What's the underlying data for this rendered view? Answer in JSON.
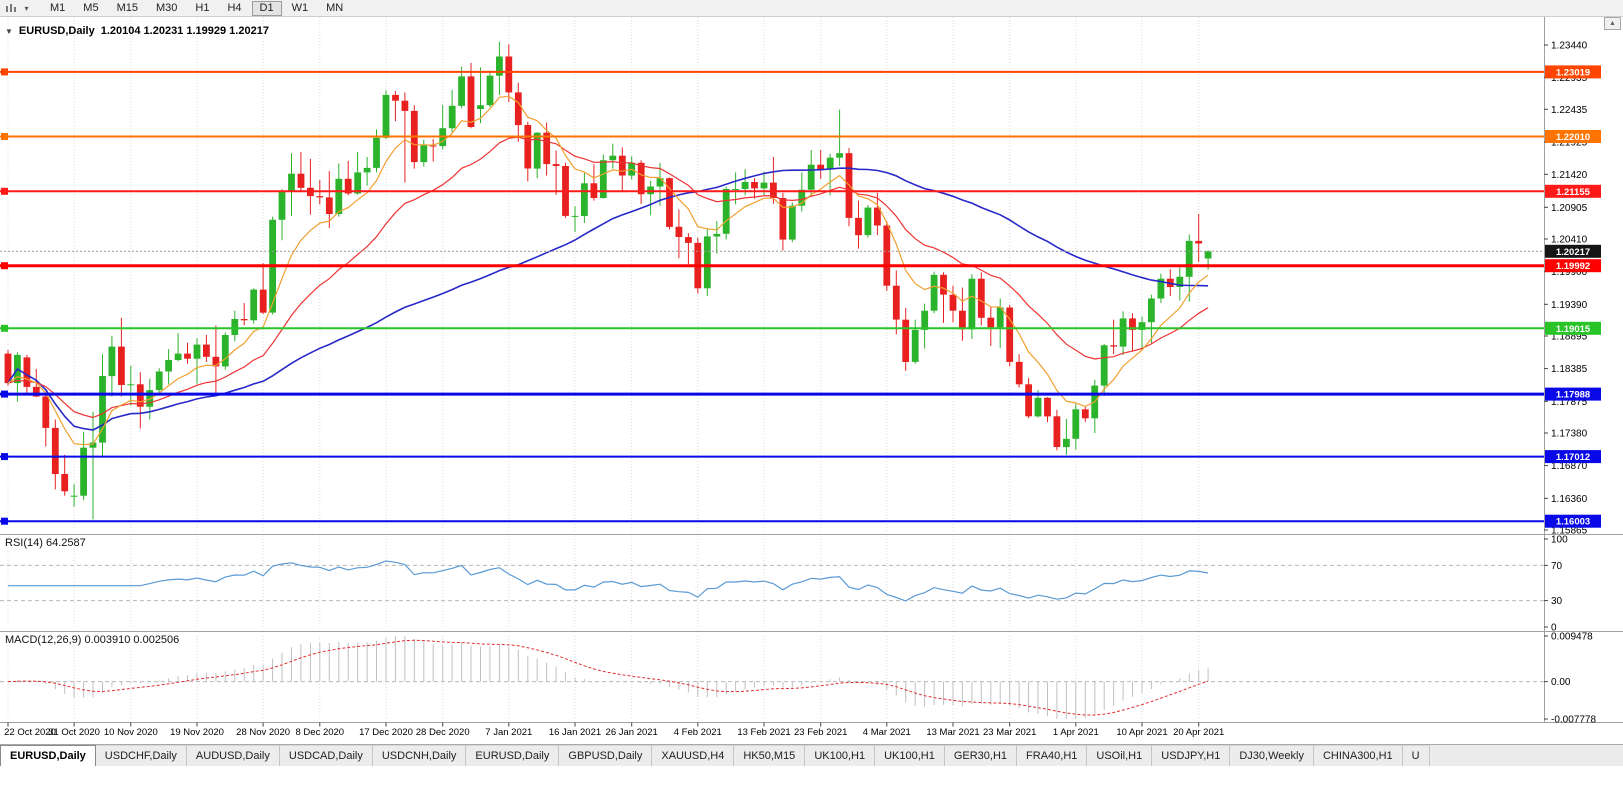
{
  "toolbar": {
    "timeframes": [
      "M1",
      "M5",
      "M15",
      "M30",
      "H1",
      "H4",
      "D1",
      "W1",
      "MN"
    ],
    "active_timeframe": "D1"
  },
  "chart_header": {
    "symbol": "EURUSD,Daily",
    "ohlc": "1.20104 1.20231 1.19929 1.20217"
  },
  "indicators": {
    "rsi_label": "RSI(14) 64.2587",
    "macd_label": "MACD(12,26,9) 0.003910 0.002506"
  },
  "colors": {
    "bull": "#2bb32b",
    "bear": "#e82020",
    "ma_fast": "#f0a030",
    "ma_mid": "#ee3333",
    "ma_slow": "#2828c8",
    "rsi": "#5b9bd5",
    "macd_hist": "#c0c0c0",
    "macd_signal": "#e03030",
    "grid": "#dcdcdc",
    "axis_text": "#000000"
  },
  "chart_data": {
    "type": "candlestick",
    "symbol": "EURUSD",
    "timeframe": "Daily",
    "ohlc_display": {
      "open": "1.20104",
      "high": "1.20231",
      "low": "1.19929",
      "close": "1.20217"
    },
    "price_scale": {
      "top": 1.23877,
      "bottom": 1.15818
    },
    "price_ticks": [
      "1.23440",
      "1.22935",
      "1.22435",
      "1.21925",
      "1.21420",
      "1.20905",
      "1.20410",
      "1.19900",
      "1.19390",
      "1.18895",
      "1.18385",
      "1.17875",
      "1.17380",
      "1.16870",
      "1.16360",
      "1.15865"
    ],
    "date_labels": [
      "22 Oct 2020",
      "31 Oct 2020",
      "10 Nov 2020",
      "19 Nov 2020",
      "28 Nov 2020",
      "8 Dec 2020",
      "17 Dec 2020",
      "28 Dec 2020",
      "7 Jan 2021",
      "16 Jan 2021",
      "26 Jan 2021",
      "4 Feb 2021",
      "13 Feb 2021",
      "23 Feb 2021",
      "4 Mar 2021",
      "13 Mar 2021",
      "23 Mar 2021",
      "1 Apr 2021",
      "10 Apr 2021",
      "20 Apr 2021"
    ],
    "x_tick_indices": [
      0,
      7,
      13,
      20,
      27,
      33,
      40,
      46,
      53,
      60,
      66,
      73,
      80,
      86,
      93,
      100,
      106,
      113,
      120,
      126
    ],
    "candles": [
      [
        1.1862,
        1.1868,
        1.1812,
        1.1816
      ],
      [
        1.1816,
        1.1864,
        1.1787,
        1.186
      ],
      [
        1.1856,
        1.186,
        1.18,
        1.181
      ],
      [
        1.181,
        1.1838,
        1.1794,
        1.1795
      ],
      [
        1.1795,
        1.18,
        1.1717,
        1.1746
      ],
      [
        1.1746,
        1.1759,
        1.165,
        1.1674
      ],
      [
        1.1674,
        1.1704,
        1.164,
        1.1647
      ],
      [
        1.164,
        1.1658,
        1.1623,
        1.164
      ],
      [
        1.164,
        1.174,
        1.1633,
        1.1715
      ],
      [
        1.1715,
        1.1771,
        1.1603,
        1.1723
      ],
      [
        1.1723,
        1.1861,
        1.1702,
        1.1827
      ],
      [
        1.1827,
        1.189,
        1.1795,
        1.1873
      ],
      [
        1.1873,
        1.1918,
        1.1795,
        1.1813
      ],
      [
        1.1813,
        1.1843,
        1.1781,
        1.1814
      ],
      [
        1.1814,
        1.1833,
        1.1745,
        1.1779
      ],
      [
        1.1779,
        1.1823,
        1.1759,
        1.1805
      ],
      [
        1.1805,
        1.1839,
        1.1799,
        1.1834
      ],
      [
        1.1834,
        1.1869,
        1.1814,
        1.1852
      ],
      [
        1.1852,
        1.1894,
        1.185,
        1.1862
      ],
      [
        1.1862,
        1.1879,
        1.1846,
        1.1854
      ],
      [
        1.1854,
        1.1886,
        1.1815,
        1.1876
      ],
      [
        1.1876,
        1.1891,
        1.1849,
        1.1857
      ],
      [
        1.1857,
        1.1906,
        1.18,
        1.1842
      ],
      [
        1.1842,
        1.1895,
        1.1837,
        1.1891
      ],
      [
        1.1891,
        1.1929,
        1.1881,
        1.1916
      ],
      [
        1.1916,
        1.1941,
        1.1906,
        1.1914
      ],
      [
        1.1914,
        1.1964,
        1.1909,
        1.1962
      ],
      [
        1.1962,
        1.2003,
        1.1924,
        1.1926
      ],
      [
        1.1926,
        1.2076,
        1.1923,
        1.2071
      ],
      [
        1.2071,
        1.2119,
        1.2039,
        1.2115
      ],
      [
        1.2115,
        1.2175,
        1.2077,
        1.2143
      ],
      [
        1.2143,
        1.2177,
        1.2115,
        1.2121
      ],
      [
        1.2121,
        1.2166,
        1.2079,
        1.2108
      ],
      [
        1.2108,
        1.2133,
        1.2095,
        1.2106
      ],
      [
        1.2106,
        1.2147,
        1.2058,
        1.208
      ],
      [
        1.208,
        1.2159,
        1.2076,
        1.2135
      ],
      [
        1.2135,
        1.2163,
        1.2109,
        1.2112
      ],
      [
        1.2112,
        1.2177,
        1.211,
        1.2145
      ],
      [
        1.2145,
        1.2169,
        1.2124,
        1.2152
      ],
      [
        1.2152,
        1.2212,
        1.2145,
        1.2199
      ],
      [
        1.2199,
        1.2273,
        1.2197,
        1.2266
      ],
      [
        1.2266,
        1.2272,
        1.2225,
        1.2257
      ],
      [
        1.2257,
        1.227,
        1.2129,
        1.2241
      ],
      [
        1.2241,
        1.225,
        1.2151,
        1.2161
      ],
      [
        1.2161,
        1.2196,
        1.2154,
        1.2187
      ],
      [
        1.2187,
        1.2197,
        1.2162,
        1.2186
      ],
      [
        1.2186,
        1.225,
        1.2181,
        1.2214
      ],
      [
        1.2214,
        1.2274,
        1.2208,
        1.2249
      ],
      [
        1.2249,
        1.231,
        1.2245,
        1.2295
      ],
      [
        1.2295,
        1.2316,
        1.2214,
        1.2216
      ],
      [
        1.2244,
        1.2309,
        1.2222,
        1.225
      ],
      [
        1.225,
        1.2304,
        1.2247,
        1.2296
      ],
      [
        1.2296,
        1.2349,
        1.2266,
        1.2326
      ],
      [
        1.2326,
        1.2345,
        1.2255,
        1.227
      ],
      [
        1.227,
        1.2285,
        1.2193,
        1.2219
      ],
      [
        1.2219,
        1.2224,
        1.2131,
        1.2151
      ],
      [
        1.2151,
        1.2208,
        1.2136,
        1.2207
      ],
      [
        1.2207,
        1.2223,
        1.214,
        1.2158
      ],
      [
        1.2158,
        1.2179,
        1.211,
        1.2155
      ],
      [
        1.2155,
        1.216,
        1.2074,
        1.2077
      ],
      [
        1.2077,
        1.2092,
        1.2052,
        1.2077
      ],
      [
        1.2077,
        1.2144,
        1.2066,
        1.2128
      ],
      [
        1.2128,
        1.2158,
        1.2101,
        1.2105
      ],
      [
        1.2105,
        1.2173,
        1.2104,
        1.2164
      ],
      [
        1.2164,
        1.219,
        1.2151,
        1.2171
      ],
      [
        1.2171,
        1.2184,
        1.2115,
        1.214
      ],
      [
        1.214,
        1.217,
        1.2134,
        1.216
      ],
      [
        1.216,
        1.2164,
        1.2096,
        1.2111
      ],
      [
        1.2111,
        1.2132,
        1.2078,
        1.2123
      ],
      [
        1.2123,
        1.216,
        1.2093,
        1.2136
      ],
      [
        1.2136,
        1.2137,
        1.2056,
        1.206
      ],
      [
        1.206,
        1.2087,
        1.2011,
        1.2044
      ],
      [
        1.2044,
        1.205,
        1.2002,
        1.2035
      ],
      [
        1.2035,
        1.2043,
        1.1956,
        1.1964
      ],
      [
        1.1964,
        1.2058,
        1.1952,
        1.2045
      ],
      [
        1.2045,
        1.2069,
        1.2018,
        1.2049
      ],
      [
        1.2049,
        1.2123,
        1.204,
        1.2119
      ],
      [
        1.2119,
        1.2145,
        1.2095,
        1.2119
      ],
      [
        1.2119,
        1.215,
        1.2109,
        1.213
      ],
      [
        1.213,
        1.2136,
        1.2104,
        1.212
      ],
      [
        1.212,
        1.2146,
        1.2109,
        1.2129
      ],
      [
        1.2129,
        1.2169,
        1.2096,
        1.2105
      ],
      [
        1.2105,
        1.2113,
        1.2023,
        1.204
      ],
      [
        1.204,
        1.2098,
        1.2036,
        1.2093
      ],
      [
        1.2093,
        1.2145,
        1.2084,
        1.2118
      ],
      [
        1.2118,
        1.218,
        1.2107,
        1.2157
      ],
      [
        1.2157,
        1.218,
        1.2135,
        1.215
      ],
      [
        1.215,
        1.2174,
        1.2109,
        1.2168
      ],
      [
        1.2168,
        1.2243,
        1.2155,
        1.2175
      ],
      [
        1.2175,
        1.2183,
        1.2061,
        1.2074
      ],
      [
        1.2074,
        1.2101,
        1.2026,
        1.2047
      ],
      [
        1.2047,
        1.2094,
        1.2043,
        1.209
      ],
      [
        1.209,
        1.2113,
        1.2047,
        1.2062
      ],
      [
        1.2062,
        1.2069,
        1.196,
        1.1968
      ],
      [
        1.1968,
        1.1992,
        1.1892,
        1.1915
      ],
      [
        1.1915,
        1.1933,
        1.1835,
        1.1849
      ],
      [
        1.1849,
        1.1915,
        1.1846,
        1.1899
      ],
      [
        1.1899,
        1.194,
        1.187,
        1.1929
      ],
      [
        1.1929,
        1.199,
        1.1925,
        1.1985
      ],
      [
        1.1985,
        1.1989,
        1.191,
        1.1954
      ],
      [
        1.1954,
        1.1968,
        1.1911,
        1.1929
      ],
      [
        1.1929,
        1.1965,
        1.1882,
        1.19
      ],
      [
        1.19,
        1.1986,
        1.1885,
        1.1979
      ],
      [
        1.1979,
        1.1989,
        1.1906,
        1.1918
      ],
      [
        1.1918,
        1.1935,
        1.1874,
        1.1903
      ],
      [
        1.1903,
        1.1948,
        1.1871,
        1.1934
      ],
      [
        1.1934,
        1.1938,
        1.1842,
        1.1849
      ],
      [
        1.1849,
        1.1861,
        1.1809,
        1.1814
      ],
      [
        1.1814,
        1.1824,
        1.1761,
        1.1764
      ],
      [
        1.1764,
        1.1805,
        1.1762,
        1.1793
      ],
      [
        1.1793,
        1.1794,
        1.1755,
        1.1764
      ],
      [
        1.1764,
        1.1774,
        1.1711,
        1.1716
      ],
      [
        1.1716,
        1.176,
        1.1704,
        1.1729
      ],
      [
        1.1729,
        1.1783,
        1.1712,
        1.1775
      ],
      [
        1.1775,
        1.1779,
        1.1755,
        1.1761
      ],
      [
        1.1761,
        1.1821,
        1.1738,
        1.1812
      ],
      [
        1.1812,
        1.1877,
        1.1796,
        1.1875
      ],
      [
        1.1875,
        1.1915,
        1.1861,
        1.1873
      ],
      [
        1.1873,
        1.1928,
        1.186,
        1.1917
      ],
      [
        1.1917,
        1.1925,
        1.1866,
        1.1899
      ],
      [
        1.1899,
        1.192,
        1.1869,
        1.1911
      ],
      [
        1.1911,
        1.1954,
        1.1878,
        1.1948
      ],
      [
        1.1948,
        1.1987,
        1.1941,
        1.1979
      ],
      [
        1.1979,
        1.1994,
        1.1952,
        1.1966
      ],
      [
        1.1966,
        1.1997,
        1.1945,
        1.1982
      ],
      [
        1.1982,
        1.2048,
        1.1943,
        1.2038
      ],
      [
        1.2038,
        1.208,
        1.2005,
        1.2034
      ],
      [
        1.20104,
        1.20231,
        1.19929,
        1.20217
      ]
    ],
    "moving_averages": [
      {
        "name": "fast",
        "period": 8,
        "color_key": "ma_fast"
      },
      {
        "name": "mid",
        "period": 21,
        "color_key": "ma_mid"
      },
      {
        "name": "slow",
        "period": 55,
        "color_key": "ma_slow"
      }
    ],
    "hlines": [
      {
        "price": 1.23019,
        "label": "1.23019",
        "color": "#ff4500",
        "width": 2
      },
      {
        "price": 1.2201,
        "label": "1.22010",
        "color": "#ff7300",
        "width": 2
      },
      {
        "price": 1.21155,
        "label": "1.21155",
        "color": "#ff1a1a",
        "width": 2
      },
      {
        "price": 1.19992,
        "label": "1.19992",
        "color": "#ff0000",
        "width": 3
      },
      {
        "price": 1.19015,
        "label": "1.19015",
        "color": "#28c428",
        "width": 2
      },
      {
        "price": 1.17988,
        "label": "1.17988",
        "color": "#0808e8",
        "width": 3
      },
      {
        "price": 1.17012,
        "label": "1.17012",
        "color": "#0808e8",
        "width": 2
      },
      {
        "price": 1.16003,
        "label": "1.16003",
        "color": "#0808e8",
        "width": 2
      }
    ],
    "current_price": {
      "value": 1.20217,
      "label": "1.20217"
    },
    "rsi": {
      "period": 14,
      "value": "64.2587",
      "levels_dashed": [
        70,
        30
      ],
      "axis_labels": [
        "100",
        "70",
        "30",
        "0"
      ]
    },
    "macd": {
      "params": "12,26,9",
      "main": "0.003910",
      "signal": "0.002506",
      "ylim": [
        -0.007778,
        0.009478
      ],
      "axis_labels": [
        {
          "text": "0.009478",
          "value": 0.009478
        },
        {
          "text": "0.00",
          "value": 0
        },
        {
          "text": "-0.007778",
          "value": -0.007778
        }
      ]
    }
  },
  "tabs": {
    "items": [
      "EURUSD,Daily",
      "USDCHF,Daily",
      "AUDUSD,Daily",
      "USDCAD,Daily",
      "USDCNH,Daily",
      "EURUSD,Daily",
      "GBPUSD,Daily",
      "XAUUSD,H4",
      "HK50,M15",
      "UK100,H1",
      "UK100,H1",
      "GER30,H1",
      "FRA40,H1",
      "USOil,H1",
      "USDJPY,H1",
      "DJ30,Weekly",
      "CHINA300,H1",
      "U"
    ],
    "active_index": 0
  },
  "misc": {
    "header_caret": "▼",
    "toolbar_caret": "▾",
    "scroll_up_glyph": "▲"
  }
}
